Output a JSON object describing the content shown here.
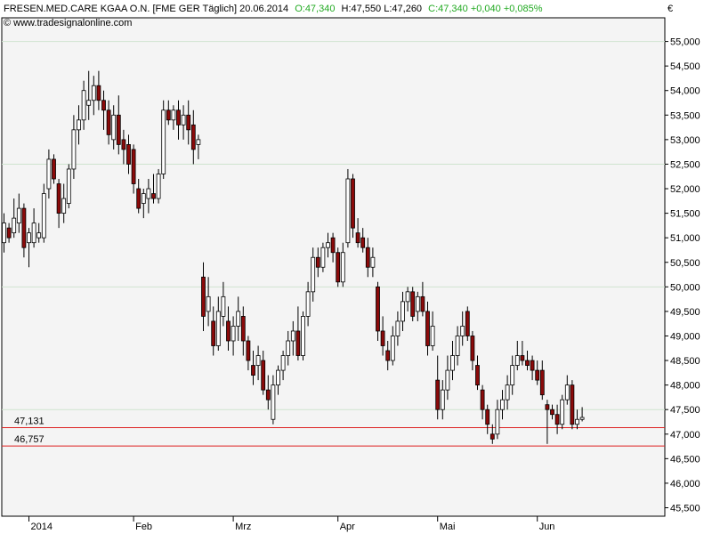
{
  "header": {
    "name_part": "FRESEN.MED.CARE KGAA O.N. [FME GER  Täglich] 20.06.2014",
    "open_part": "O:47,340",
    "hl_part": "H:47,550 L:47,260",
    "close_part": "C:47,340 +0,040 +0,085%",
    "watermark": "© www.tradesignalonline.com",
    "currency": "€"
  },
  "colors": {
    "background": "#ffffff",
    "plot_background": "#f4f4f4",
    "up_candle": "#ffffff",
    "down_candle": "#8b0a0a",
    "wick": "#000000",
    "grid": "#cfe3cf",
    "price_line": "#dd2222",
    "header_green": "#22aa22"
  },
  "chart_data": {
    "type": "candlestick",
    "title": "FRESEN.MED.CARE KGAA O.N. [FME GER  Täglich] 20.06.2014",
    "y_unit": "€",
    "ylim": [
      45.5,
      55.5
    ],
    "y_ticks": [
      45.5,
      46.0,
      46.5,
      47.0,
      47.5,
      48.0,
      48.5,
      49.0,
      49.5,
      50.0,
      50.5,
      51.0,
      51.5,
      52.0,
      52.5,
      53.0,
      53.5,
      54.0,
      54.5,
      55.0
    ],
    "y_tick_labels": [
      "45,500",
      "46,000",
      "46,500",
      "47,000",
      "47,500",
      "48,000",
      "48,500",
      "49,000",
      "49,500",
      "50,000",
      "50,500",
      "51,000",
      "51,500",
      "52,000",
      "52,500",
      "53,000",
      "53,500",
      "54,000",
      "54,500",
      "55,000"
    ],
    "x_labels": [
      {
        "label": "2014",
        "index": 5
      },
      {
        "label": "Feb",
        "index": 26
      },
      {
        "label": "Mrz",
        "index": 46
      },
      {
        "label": "Apr",
        "index": 67
      },
      {
        "label": "Mai",
        "index": 87
      },
      {
        "label": "Jun",
        "index": 107
      }
    ],
    "grid_y": [
      47.5,
      50.0,
      52.5,
      55.0
    ],
    "horizontal_lines": [
      {
        "value": 47.131,
        "label": "47,131"
      },
      {
        "value": 46.757,
        "label": "46,757"
      }
    ],
    "candles": [
      {
        "o": 50.9,
        "h": 51.5,
        "l": 50.7,
        "c": 51.3
      },
      {
        "o": 51.2,
        "h": 51.3,
        "l": 50.9,
        "c": 51.0
      },
      {
        "o": 51.1,
        "h": 51.8,
        "l": 51.0,
        "c": 51.4
      },
      {
        "o": 51.3,
        "h": 51.9,
        "l": 51.1,
        "c": 51.6
      },
      {
        "o": 51.6,
        "h": 51.7,
        "l": 50.6,
        "c": 50.8
      },
      {
        "o": 50.9,
        "h": 51.2,
        "l": 50.4,
        "c": 51.1
      },
      {
        "o": 50.9,
        "h": 51.6,
        "l": 50.8,
        "c": 51.3
      },
      {
        "o": 51.0,
        "h": 51.3,
        "l": 50.9,
        "c": 51.1
      },
      {
        "o": 51.0,
        "h": 52.1,
        "l": 50.9,
        "c": 51.9
      },
      {
        "o": 52.0,
        "h": 52.8,
        "l": 51.8,
        "c": 52.6
      },
      {
        "o": 52.6,
        "h": 52.7,
        "l": 52.1,
        "c": 52.2
      },
      {
        "o": 52.1,
        "h": 52.2,
        "l": 51.2,
        "c": 51.5
      },
      {
        "o": 51.5,
        "h": 52.1,
        "l": 51.3,
        "c": 51.8
      },
      {
        "o": 51.7,
        "h": 52.5,
        "l": 51.6,
        "c": 52.4
      },
      {
        "o": 52.4,
        "h": 53.5,
        "l": 52.2,
        "c": 53.2
      },
      {
        "o": 53.2,
        "h": 53.7,
        "l": 52.9,
        "c": 53.4
      },
      {
        "o": 53.4,
        "h": 54.2,
        "l": 53.2,
        "c": 54.0
      },
      {
        "o": 53.7,
        "h": 54.4,
        "l": 53.4,
        "c": 53.8
      },
      {
        "o": 53.8,
        "h": 54.3,
        "l": 53.5,
        "c": 54.1
      },
      {
        "o": 54.1,
        "h": 54.4,
        "l": 53.6,
        "c": 53.8
      },
      {
        "o": 53.8,
        "h": 54.0,
        "l": 53.2,
        "c": 53.6
      },
      {
        "o": 53.6,
        "h": 53.8,
        "l": 52.9,
        "c": 53.1
      },
      {
        "o": 53.0,
        "h": 53.7,
        "l": 52.8,
        "c": 53.5
      },
      {
        "o": 53.5,
        "h": 53.9,
        "l": 52.7,
        "c": 52.9
      },
      {
        "o": 53.0,
        "h": 53.2,
        "l": 52.5,
        "c": 52.8
      },
      {
        "o": 52.9,
        "h": 53.1,
        "l": 52.3,
        "c": 52.5
      },
      {
        "o": 52.8,
        "h": 52.9,
        "l": 51.9,
        "c": 52.1
      },
      {
        "o": 52.0,
        "h": 52.2,
        "l": 51.5,
        "c": 51.6
      },
      {
        "o": 51.7,
        "h": 52.0,
        "l": 51.4,
        "c": 51.9
      },
      {
        "o": 51.8,
        "h": 52.2,
        "l": 51.5,
        "c": 52.0
      },
      {
        "o": 51.9,
        "h": 52.3,
        "l": 51.7,
        "c": 51.8
      },
      {
        "o": 51.8,
        "h": 52.4,
        "l": 51.7,
        "c": 52.3
      },
      {
        "o": 52.3,
        "h": 53.8,
        "l": 52.2,
        "c": 53.6
      },
      {
        "o": 53.6,
        "h": 53.8,
        "l": 53.3,
        "c": 53.4
      },
      {
        "o": 53.4,
        "h": 53.7,
        "l": 53.2,
        "c": 53.6
      },
      {
        "o": 53.6,
        "h": 53.8,
        "l": 53.0,
        "c": 53.3
      },
      {
        "o": 53.3,
        "h": 53.7,
        "l": 53.0,
        "c": 53.5
      },
      {
        "o": 53.5,
        "h": 53.8,
        "l": 52.9,
        "c": 53.2
      },
      {
        "o": 53.3,
        "h": 53.6,
        "l": 52.5,
        "c": 52.8
      },
      {
        "o": 52.9,
        "h": 53.1,
        "l": 52.6,
        "c": 53.0
      },
      {
        "o": 50.2,
        "h": 50.5,
        "l": 49.1,
        "c": 49.4
      },
      {
        "o": 49.5,
        "h": 50.2,
        "l": 49.2,
        "c": 49.8
      },
      {
        "o": 49.3,
        "h": 49.6,
        "l": 48.6,
        "c": 48.8
      },
      {
        "o": 48.8,
        "h": 49.8,
        "l": 48.7,
        "c": 49.5
      },
      {
        "o": 49.4,
        "h": 50.1,
        "l": 49.2,
        "c": 49.8
      },
      {
        "o": 49.3,
        "h": 49.6,
        "l": 48.7,
        "c": 48.9
      },
      {
        "o": 48.9,
        "h": 49.4,
        "l": 48.6,
        "c": 49.2
      },
      {
        "o": 49.2,
        "h": 49.8,
        "l": 48.9,
        "c": 49.5
      },
      {
        "o": 49.4,
        "h": 49.6,
        "l": 48.6,
        "c": 48.9
      },
      {
        "o": 48.9,
        "h": 49.0,
        "l": 48.3,
        "c": 48.5
      },
      {
        "o": 48.4,
        "h": 48.7,
        "l": 48.0,
        "c": 48.2
      },
      {
        "o": 48.4,
        "h": 48.8,
        "l": 48.1,
        "c": 48.6
      },
      {
        "o": 48.5,
        "h": 48.7,
        "l": 47.8,
        "c": 47.9
      },
      {
        "o": 47.9,
        "h": 48.2,
        "l": 47.5,
        "c": 47.7
      },
      {
        "o": 47.3,
        "h": 48.2,
        "l": 47.2,
        "c": 48.0
      },
      {
        "o": 48.0,
        "h": 48.4,
        "l": 47.8,
        "c": 48.3
      },
      {
        "o": 48.3,
        "h": 48.7,
        "l": 48.1,
        "c": 48.6
      },
      {
        "o": 48.6,
        "h": 49.1,
        "l": 48.4,
        "c": 48.9
      },
      {
        "o": 48.9,
        "h": 49.3,
        "l": 48.6,
        "c": 49.1
      },
      {
        "o": 49.1,
        "h": 49.6,
        "l": 48.5,
        "c": 48.6
      },
      {
        "o": 48.6,
        "h": 49.5,
        "l": 48.5,
        "c": 49.4
      },
      {
        "o": 49.4,
        "h": 50.1,
        "l": 49.2,
        "c": 49.9
      },
      {
        "o": 49.9,
        "h": 50.8,
        "l": 49.7,
        "c": 50.6
      },
      {
        "o": 50.6,
        "h": 50.8,
        "l": 50.2,
        "c": 50.4
      },
      {
        "o": 50.4,
        "h": 50.9,
        "l": 50.3,
        "c": 50.8
      },
      {
        "o": 50.8,
        "h": 51.1,
        "l": 50.6,
        "c": 50.9
      },
      {
        "o": 51.0,
        "h": 51.1,
        "l": 50.5,
        "c": 50.7
      },
      {
        "o": 50.7,
        "h": 50.8,
        "l": 50.0,
        "c": 50.1
      },
      {
        "o": 50.1,
        "h": 50.9,
        "l": 50.0,
        "c": 50.7
      },
      {
        "o": 50.9,
        "h": 52.4,
        "l": 50.8,
        "c": 52.2
      },
      {
        "o": 52.2,
        "h": 52.3,
        "l": 51.0,
        "c": 51.2
      },
      {
        "o": 51.1,
        "h": 51.4,
        "l": 50.8,
        "c": 50.9
      },
      {
        "o": 51.0,
        "h": 51.2,
        "l": 50.7,
        "c": 50.8
      },
      {
        "o": 50.8,
        "h": 51.0,
        "l": 50.2,
        "c": 50.4
      },
      {
        "o": 50.4,
        "h": 50.8,
        "l": 50.2,
        "c": 50.6
      },
      {
        "o": 50.0,
        "h": 50.1,
        "l": 48.9,
        "c": 49.1
      },
      {
        "o": 49.1,
        "h": 49.4,
        "l": 48.6,
        "c": 48.8
      },
      {
        "o": 48.7,
        "h": 48.9,
        "l": 48.3,
        "c": 48.5
      },
      {
        "o": 48.5,
        "h": 49.2,
        "l": 48.4,
        "c": 49.0
      },
      {
        "o": 49.0,
        "h": 49.5,
        "l": 48.8,
        "c": 49.3
      },
      {
        "o": 49.3,
        "h": 49.9,
        "l": 49.1,
        "c": 49.7
      },
      {
        "o": 49.7,
        "h": 50.0,
        "l": 49.5,
        "c": 49.9
      },
      {
        "o": 49.9,
        "h": 50.0,
        "l": 49.3,
        "c": 49.4
      },
      {
        "o": 49.5,
        "h": 49.9,
        "l": 49.3,
        "c": 49.8
      },
      {
        "o": 49.8,
        "h": 50.1,
        "l": 49.4,
        "c": 49.5
      },
      {
        "o": 49.5,
        "h": 49.7,
        "l": 48.6,
        "c": 48.8
      },
      {
        "o": 48.8,
        "h": 49.5,
        "l": 48.7,
        "c": 49.2
      },
      {
        "o": 48.1,
        "h": 48.6,
        "l": 47.3,
        "c": 47.5
      },
      {
        "o": 47.5,
        "h": 48.1,
        "l": 47.3,
        "c": 47.9
      },
      {
        "o": 47.9,
        "h": 48.6,
        "l": 47.7,
        "c": 48.3
      },
      {
        "o": 48.3,
        "h": 48.9,
        "l": 48.1,
        "c": 48.6
      },
      {
        "o": 48.6,
        "h": 49.2,
        "l": 48.4,
        "c": 49.0
      },
      {
        "o": 49.0,
        "h": 49.5,
        "l": 48.8,
        "c": 49.2
      },
      {
        "o": 49.5,
        "h": 49.6,
        "l": 48.9,
        "c": 49.0
      },
      {
        "o": 49.0,
        "h": 49.1,
        "l": 48.3,
        "c": 48.5
      },
      {
        "o": 48.4,
        "h": 48.6,
        "l": 47.9,
        "c": 48.0
      },
      {
        "o": 47.9,
        "h": 48.0,
        "l": 47.3,
        "c": 47.5
      },
      {
        "o": 47.5,
        "h": 47.6,
        "l": 47.0,
        "c": 47.2
      },
      {
        "o": 47.0,
        "h": 47.2,
        "l": 46.8,
        "c": 46.9
      },
      {
        "o": 47.0,
        "h": 47.7,
        "l": 46.9,
        "c": 47.5
      },
      {
        "o": 47.5,
        "h": 47.9,
        "l": 47.3,
        "c": 47.7
      },
      {
        "o": 47.7,
        "h": 48.2,
        "l": 47.5,
        "c": 48.0
      },
      {
        "o": 48.0,
        "h": 48.6,
        "l": 47.8,
        "c": 48.4
      },
      {
        "o": 48.4,
        "h": 48.9,
        "l": 48.3,
        "c": 48.6
      },
      {
        "o": 48.6,
        "h": 48.9,
        "l": 48.4,
        "c": 48.5
      },
      {
        "o": 48.5,
        "h": 48.7,
        "l": 48.3,
        "c": 48.4
      },
      {
        "o": 48.5,
        "h": 48.6,
        "l": 48.1,
        "c": 48.3
      },
      {
        "o": 48.3,
        "h": 48.5,
        "l": 48.0,
        "c": 48.1
      },
      {
        "o": 48.3,
        "h": 48.5,
        "l": 47.7,
        "c": 47.8
      },
      {
        "o": 47.6,
        "h": 47.7,
        "l": 46.8,
        "c": 47.5
      },
      {
        "o": 47.5,
        "h": 47.6,
        "l": 47.3,
        "c": 47.4
      },
      {
        "o": 47.4,
        "h": 47.6,
        "l": 47.0,
        "c": 47.2
      },
      {
        "o": 47.2,
        "h": 47.8,
        "l": 47.1,
        "c": 47.7
      },
      {
        "o": 47.7,
        "h": 48.2,
        "l": 47.6,
        "c": 48.0
      },
      {
        "o": 48.0,
        "h": 48.1,
        "l": 47.1,
        "c": 47.2
      },
      {
        "o": 47.2,
        "h": 47.5,
        "l": 47.1,
        "c": 47.3
      },
      {
        "o": 47.3,
        "h": 47.55,
        "l": 47.26,
        "c": 47.34
      }
    ]
  }
}
